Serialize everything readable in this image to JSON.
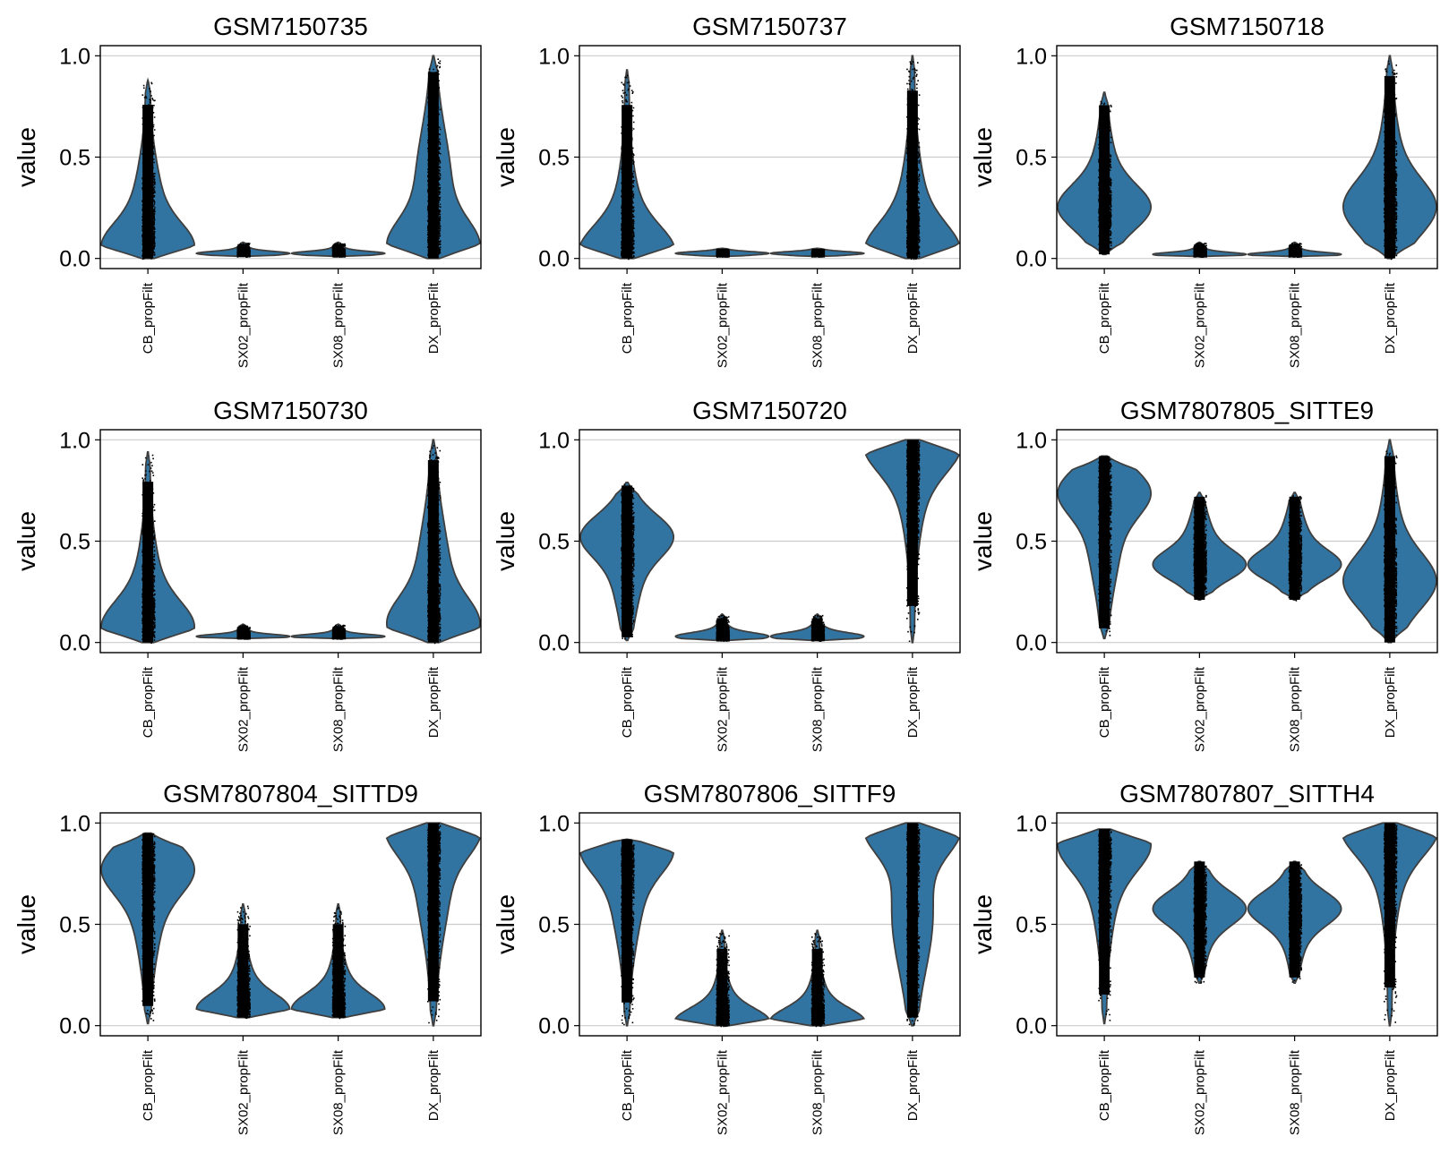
{
  "chart_data": [
    {
      "type": "violin",
      "title": "GSM7150735",
      "ylabel": "value",
      "ylim": [
        -0.05,
        1.05
      ],
      "yticks": [
        "0.0",
        "0.5",
        "1.0"
      ],
      "grid": "horizontal",
      "color": "#3274a1",
      "categories": [
        "CB_propFilt",
        "SX02_propFilt",
        "SX08_propFilt",
        "DX_propFilt"
      ],
      "violins": [
        {
          "category": "CB_propFilt",
          "min": 0.0,
          "max": 0.88,
          "median": 0.18,
          "mode": 0.05
        },
        {
          "category": "SX02_propFilt",
          "min": 0.01,
          "max": 0.08,
          "median": 0.025,
          "mode": 0.025
        },
        {
          "category": "SX08_propFilt",
          "min": 0.01,
          "max": 0.08,
          "median": 0.025,
          "mode": 0.025
        },
        {
          "category": "DX_propFilt",
          "min": 0.0,
          "max": 1.0,
          "median": 0.35,
          "mode": 0.05
        }
      ]
    },
    {
      "type": "violin",
      "title": "GSM7150737",
      "ylabel": "value",
      "ylim": [
        -0.05,
        1.05
      ],
      "yticks": [
        "0.0",
        "0.5",
        "1.0"
      ],
      "grid": "horizontal",
      "color": "#3274a1",
      "categories": [
        "CB_propFilt",
        "SX02_propFilt",
        "SX08_propFilt",
        "DX_propFilt"
      ],
      "violins": [
        {
          "category": "CB_propFilt",
          "min": 0.0,
          "max": 0.93,
          "median": 0.08,
          "mode": 0.03
        },
        {
          "category": "SX02_propFilt",
          "min": 0.01,
          "max": 0.05,
          "median": 0.025,
          "mode": 0.025
        },
        {
          "category": "SX08_propFilt",
          "min": 0.01,
          "max": 0.05,
          "median": 0.025,
          "mode": 0.025
        },
        {
          "category": "DX_propFilt",
          "min": 0.0,
          "max": 1.0,
          "median": 0.12,
          "mode": 0.03
        }
      ]
    },
    {
      "type": "violin",
      "title": "GSM7150718",
      "ylabel": "value",
      "ylim": [
        -0.05,
        1.05
      ],
      "yticks": [
        "0.0",
        "0.5",
        "1.0"
      ],
      "grid": "horizontal",
      "color": "#3274a1",
      "categories": [
        "CB_propFilt",
        "SX02_propFilt",
        "SX08_propFilt",
        "DX_propFilt"
      ],
      "violins": [
        {
          "category": "CB_propFilt",
          "min": 0.02,
          "max": 0.82,
          "median": 0.3,
          "mode": 0.25
        },
        {
          "category": "SX02_propFilt",
          "min": 0.01,
          "max": 0.08,
          "median": 0.02,
          "mode": 0.02
        },
        {
          "category": "SX08_propFilt",
          "min": 0.01,
          "max": 0.08,
          "median": 0.02,
          "mode": 0.02
        },
        {
          "category": "DX_propFilt",
          "min": 0.0,
          "max": 1.0,
          "median": 0.3,
          "mode": 0.25
        }
      ]
    },
    {
      "type": "violin",
      "title": "GSM7150730",
      "ylabel": "value",
      "ylim": [
        -0.05,
        1.05
      ],
      "yticks": [
        "0.0",
        "0.5",
        "1.0"
      ],
      "grid": "horizontal",
      "color": "#3274a1",
      "categories": [
        "CB_propFilt",
        "SX02_propFilt",
        "SX08_propFilt",
        "DX_propFilt"
      ],
      "violins": [
        {
          "category": "CB_propFilt",
          "min": 0.0,
          "max": 0.94,
          "median": 0.15,
          "mode": 0.07
        },
        {
          "category": "SX02_propFilt",
          "min": 0.02,
          "max": 0.09,
          "median": 0.03,
          "mode": 0.03
        },
        {
          "category": "SX08_propFilt",
          "min": 0.02,
          "max": 0.09,
          "median": 0.03,
          "mode": 0.03
        },
        {
          "category": "DX_propFilt",
          "min": 0.0,
          "max": 1.0,
          "median": 0.3,
          "mode": 0.08
        }
      ]
    },
    {
      "type": "violin",
      "title": "GSM7150720",
      "ylabel": "value",
      "ylim": [
        -0.05,
        1.05
      ],
      "yticks": [
        "0.0",
        "0.5",
        "1.0"
      ],
      "grid": "horizontal",
      "color": "#3274a1",
      "categories": [
        "CB_propFilt",
        "SX02_propFilt",
        "SX08_propFilt",
        "DX_propFilt"
      ],
      "violins": [
        {
          "category": "CB_propFilt",
          "min": 0.01,
          "max": 0.79,
          "median": 0.4,
          "mode": 0.53
        },
        {
          "category": "SX02_propFilt",
          "min": 0.01,
          "max": 0.14,
          "median": 0.03,
          "mode": 0.03
        },
        {
          "category": "SX08_propFilt",
          "min": 0.01,
          "max": 0.14,
          "median": 0.03,
          "mode": 0.03
        },
        {
          "category": "DX_propFilt",
          "min": 0.0,
          "max": 1.0,
          "median": 0.9,
          "mode": 0.98
        }
      ]
    },
    {
      "type": "violin",
      "title": "GSM7807805_SITTE9",
      "ylabel": "value",
      "ylim": [
        -0.05,
        1.05
      ],
      "yticks": [
        "0.0",
        "0.5",
        "1.0"
      ],
      "grid": "horizontal",
      "color": "#3274a1",
      "categories": [
        "CB_propFilt",
        "SX02_propFilt",
        "SX08_propFilt",
        "DX_propFilt"
      ],
      "violins": [
        {
          "category": "CB_propFilt",
          "min": 0.02,
          "max": 0.92,
          "median": 0.55,
          "mode": 0.75
        },
        {
          "category": "SX02_propFilt",
          "min": 0.21,
          "max": 0.74,
          "median": 0.45,
          "mode": 0.38
        },
        {
          "category": "SX08_propFilt",
          "min": 0.21,
          "max": 0.74,
          "median": 0.45,
          "mode": 0.38
        },
        {
          "category": "DX_propFilt",
          "min": 0.0,
          "max": 1.0,
          "median": 0.35,
          "mode": 0.3
        }
      ]
    },
    {
      "type": "violin",
      "title": "GSM7807804_SITTD9",
      "ylabel": "value",
      "ylim": [
        -0.05,
        1.05
      ],
      "yticks": [
        "0.0",
        "0.5",
        "1.0"
      ],
      "grid": "horizontal",
      "color": "#3274a1",
      "categories": [
        "CB_propFilt",
        "SX02_propFilt",
        "SX08_propFilt",
        "DX_propFilt"
      ],
      "violins": [
        {
          "category": "CB_propFilt",
          "min": 0.01,
          "max": 0.95,
          "median": 0.65,
          "mode": 0.78
        },
        {
          "category": "SX02_propFilt",
          "min": 0.04,
          "max": 0.6,
          "median": 0.1,
          "mode": 0.08
        },
        {
          "category": "SX08_propFilt",
          "min": 0.04,
          "max": 0.6,
          "median": 0.1,
          "mode": 0.08
        },
        {
          "category": "DX_propFilt",
          "min": 0.0,
          "max": 1.0,
          "median": 0.75,
          "mode": 0.98
        }
      ]
    },
    {
      "type": "violin",
      "title": "GSM7807806_SITTF9",
      "ylabel": "value",
      "ylim": [
        -0.05,
        1.05
      ],
      "yticks": [
        "0.0",
        "0.5",
        "1.0"
      ],
      "grid": "horizontal",
      "color": "#3274a1",
      "categories": [
        "CB_propFilt",
        "SX02_propFilt",
        "SX08_propFilt",
        "DX_propFilt"
      ],
      "violins": [
        {
          "category": "CB_propFilt",
          "min": 0.0,
          "max": 0.92,
          "median": 0.7,
          "mode": 0.88
        },
        {
          "category": "SX02_propFilt",
          "min": 0.0,
          "max": 0.47,
          "median": 0.03,
          "mode": 0.02
        },
        {
          "category": "SX08_propFilt",
          "min": 0.0,
          "max": 0.47,
          "median": 0.03,
          "mode": 0.02
        },
        {
          "category": "DX_propFilt",
          "min": 0.0,
          "max": 1.0,
          "median": 0.55,
          "mode": 0.98
        }
      ]
    },
    {
      "type": "violin",
      "title": "GSM7807807_SITTH4",
      "ylabel": "value",
      "ylim": [
        -0.05,
        1.05
      ],
      "yticks": [
        "0.0",
        "0.5",
        "1.0"
      ],
      "grid": "horizontal",
      "color": "#3274a1",
      "categories": [
        "CB_propFilt",
        "SX02_propFilt",
        "SX08_propFilt",
        "DX_propFilt"
      ],
      "violins": [
        {
          "category": "CB_propFilt",
          "min": 0.01,
          "max": 0.97,
          "median": 0.8,
          "mode": 0.9
        },
        {
          "category": "SX02_propFilt",
          "min": 0.21,
          "max": 0.81,
          "median": 0.55,
          "mode": 0.58
        },
        {
          "category": "SX08_propFilt",
          "min": 0.21,
          "max": 0.81,
          "median": 0.55,
          "mode": 0.58
        },
        {
          "category": "DX_propFilt",
          "min": 0.0,
          "max": 1.0,
          "median": 0.92,
          "mode": 0.98
        }
      ]
    }
  ]
}
